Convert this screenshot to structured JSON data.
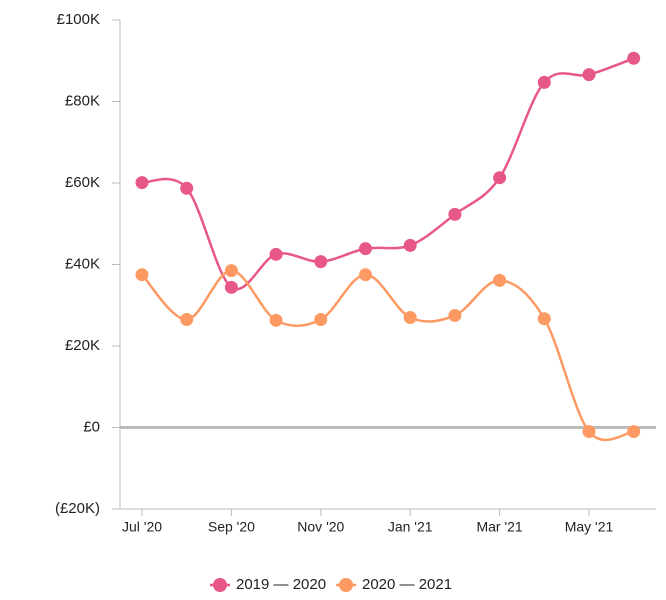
{
  "chart_data": {
    "type": "line",
    "categories": [
      "Jul '20",
      null,
      "Sep '20",
      null,
      "Nov '20",
      null,
      "Jan '21",
      null,
      "Mar '21",
      null,
      "May '21",
      null
    ],
    "series": [
      {
        "name": "2019 — 2020",
        "color": "#e8578a",
        "values": [
          60100,
          58700,
          34400,
          42500,
          40700,
          43900,
          44700,
          52300,
          61300,
          84700,
          86600,
          90600
        ]
      },
      {
        "name": "2020 — 2021",
        "color": "#fd9a63",
        "values": [
          37500,
          26500,
          38500,
          26300,
          26500,
          37500,
          27000,
          27500,
          36100,
          26700,
          -1000,
          -1000
        ]
      }
    ],
    "ylim": [
      -20000,
      100000
    ],
    "yticks": [
      {
        "value": -20000,
        "label": "(£20K)"
      },
      {
        "value": 0,
        "label": "£0"
      },
      {
        "value": 20000,
        "label": "£20K"
      },
      {
        "value": 40000,
        "label": "£40K"
      },
      {
        "value": 60000,
        "label": "£60K"
      },
      {
        "value": 80000,
        "label": "£80K"
      },
      {
        "value": 100000,
        "label": "£100K"
      }
    ],
    "legend": "bottom"
  }
}
